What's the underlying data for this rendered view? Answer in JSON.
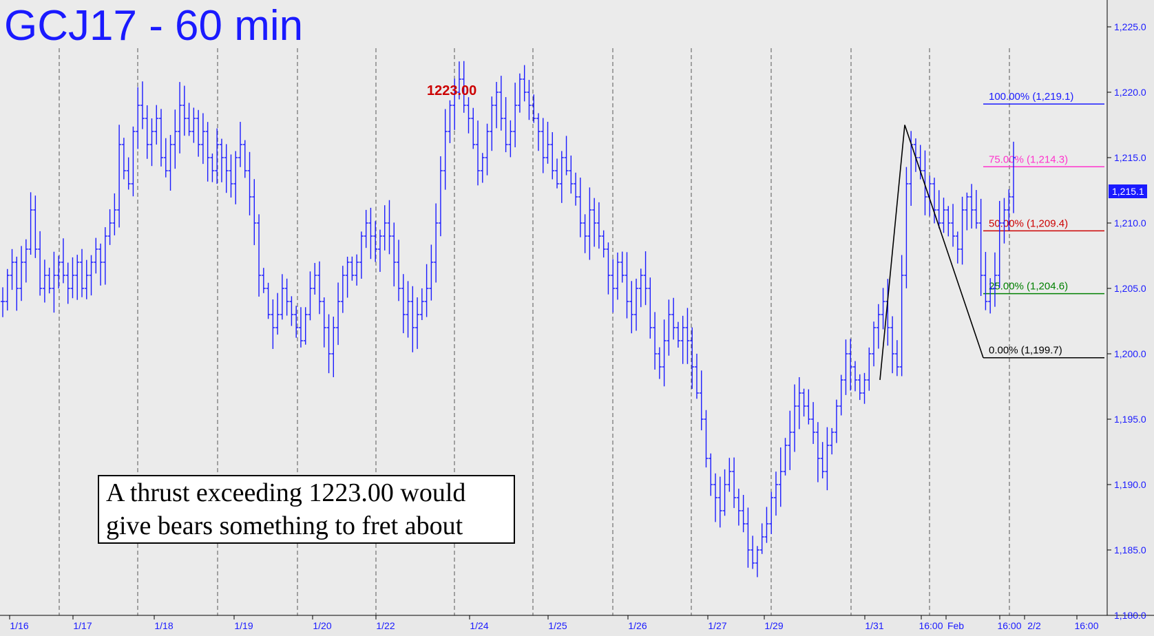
{
  "chart_data": {
    "type": "bar",
    "title": "GCJ17 - 60 min",
    "ylim": [
      1180,
      1226
    ],
    "y_ticks": [
      "1,225.0",
      "1,220.0",
      "1,215.0",
      "1,210.0",
      "1,205.0",
      "1,200.0",
      "1,195.0",
      "1,190.0",
      "1,185.0",
      "1,180.0"
    ],
    "x_ticks": [
      "1/16",
      "1/17",
      "1/18",
      "1/19",
      "1/20",
      "1/22",
      "1/24",
      "1/25",
      "1/26",
      "1/27",
      "1/29",
      "1/31",
      "16:00",
      "Feb",
      "16:00",
      "2/2",
      "16:00"
    ],
    "current_price": "1,215.1",
    "peak_label": "1223.00",
    "fib_levels": [
      {
        "label": "100.00% (1,219.1)",
        "value": 1219.1,
        "color": "#1a1aff"
      },
      {
        "label": "75.00% (1,214.3)",
        "value": 1214.3,
        "color": "#ff33cc"
      },
      {
        "label": "50.00% (1,209.4)",
        "value": 1209.4,
        "color": "#cc0000"
      },
      {
        "label": "25.00% (1,204.6)",
        "value": 1204.6,
        "color": "#008000"
      },
      {
        "label": "0.00% (1,199.7)",
        "value": 1199.7,
        "color": "#000000"
      }
    ],
    "swing_points": [
      1198.0,
      1217.5,
      1199.7
    ],
    "series": [
      {
        "values": [
          1204,
          1206,
          1207,
          1205,
          1207,
          1208,
          1211,
          1208,
          1205,
          1206,
          1205,
          1206,
          1207,
          1206,
          1205,
          1206,
          1207,
          1205,
          1206,
          1207,
          1208,
          1207,
          1209,
          1210,
          1211,
          1216,
          1214,
          1213,
          1217,
          1219,
          1218,
          1216,
          1217,
          1218,
          1215,
          1214,
          1216,
          1217,
          1219,
          1218,
          1217,
          1218,
          1216,
          1217,
          1215,
          1214,
          1216,
          1215,
          1214,
          1213,
          1215,
          1216,
          1214,
          1212,
          1210,
          1206,
          1205,
          1203,
          1202,
          1203,
          1205,
          1204,
          1203,
          1202,
          1201,
          1203,
          1205,
          1206,
          1204,
          1202,
          1200,
          1202,
          1204,
          1206,
          1207,
          1206,
          1207,
          1209,
          1210,
          1209,
          1208,
          1209,
          1210,
          1209,
          1207,
          1205,
          1203,
          1204,
          1202,
          1203,
          1204,
          1205,
          1207,
          1210,
          1214,
          1217,
          1219,
          1220,
          1221,
          1219,
          1218,
          1216,
          1214,
          1215,
          1217,
          1219,
          1220,
          1218,
          1216,
          1217,
          1219,
          1221,
          1220,
          1219,
          1218,
          1217,
          1215,
          1216,
          1214,
          1213,
          1215,
          1214,
          1213,
          1212,
          1210,
          1209,
          1211,
          1210,
          1209,
          1208,
          1206,
          1205,
          1207,
          1206,
          1204,
          1203,
          1205,
          1206,
          1205,
          1202,
          1200,
          1199,
          1201,
          1203,
          1202,
          1201,
          1202,
          1201,
          1199,
          1197,
          1195,
          1192,
          1190,
          1189,
          1188,
          1190,
          1191,
          1189,
          1188,
          1187,
          1185,
          1184,
          1185,
          1186,
          1187,
          1189,
          1190,
          1191,
          1193,
          1194,
          1196,
          1197,
          1196,
          1195,
          1194,
          1192,
          1191,
          1193,
          1194,
          1196,
          1198,
          1200,
          1199,
          1198,
          1197,
          1198,
          1200,
          1202,
          1203,
          1204,
          1202,
          1200,
          1199,
          1206,
          1213,
          1216,
          1215,
          1214,
          1212,
          1213,
          1211,
          1210,
          1211,
          1210,
          1209,
          1208,
          1211,
          1212,
          1211,
          1210,
          1206,
          1204,
          1205,
          1206,
          1210,
          1211,
          1212,
          1215
        ]
      }
    ]
  },
  "annotation": {
    "line1": "A thrust exceeding 1223.00 would",
    "line2": "give bears something to fret about"
  }
}
